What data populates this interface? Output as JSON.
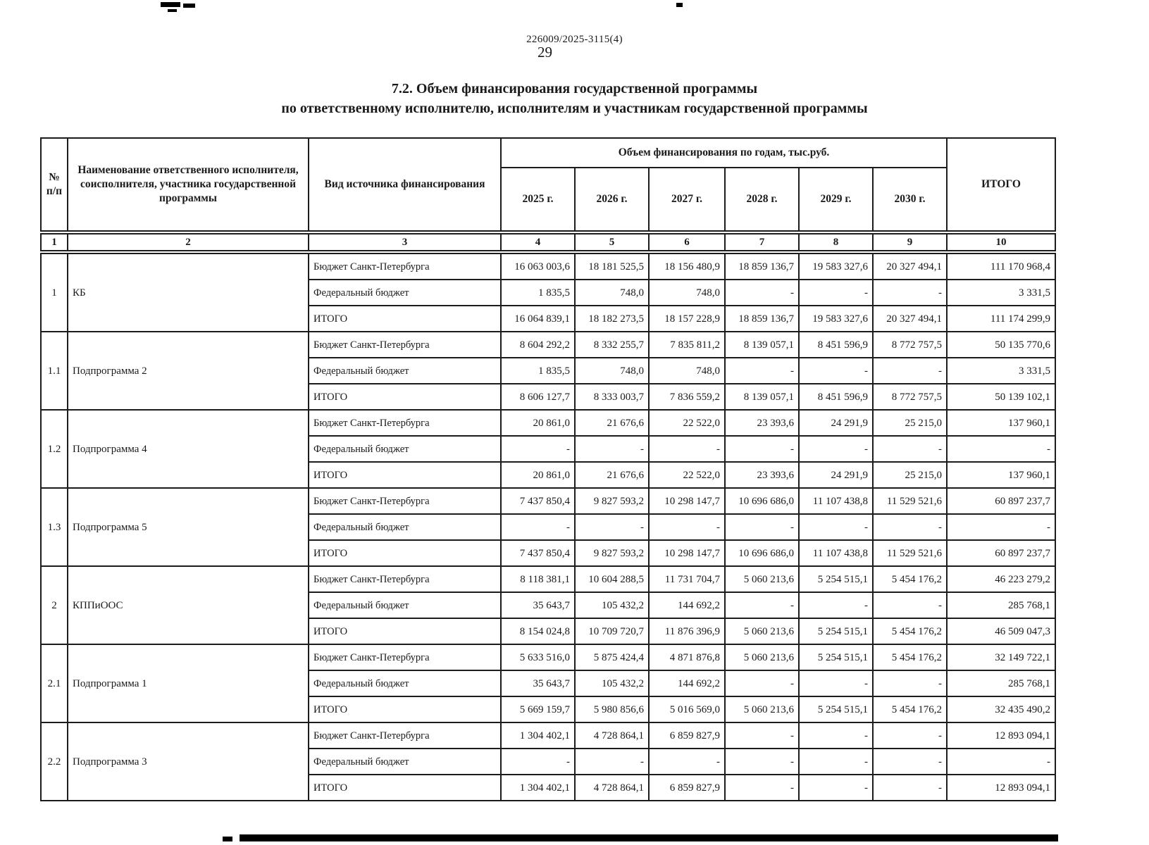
{
  "page": {
    "doc_number": "226009/2025-3115(4)",
    "page_number": "29",
    "title_line1": "7.2. Объем финансирования государственной программы",
    "title_line2": "по ответственному исполнителю, исполнителям и участникам государственной программы"
  },
  "table": {
    "headers": {
      "num": "№ п/п",
      "name": "Наименование ответственного исполнителя, соисполнителя, участника государственной программы",
      "source": "Вид источника финансирования",
      "volume_group": "Объем финансирования по годам, тыс.руб.",
      "years": [
        "2025 г.",
        "2026 г.",
        "2027 г.",
        "2028 г.",
        "2029 г.",
        "2030 г."
      ],
      "total": "ИТОГО",
      "col_numbers": [
        "1",
        "2",
        "3",
        "4",
        "5",
        "6",
        "7",
        "8",
        "9",
        "10"
      ]
    },
    "groups": [
      {
        "num": "1",
        "name": "КБ",
        "rows": [
          {
            "source": "Бюджет Санкт-Петербурга",
            "values": [
              "16 063 003,6",
              "18 181 525,5",
              "18 156 480,9",
              "18 859 136,7",
              "19 583 327,6",
              "20 327 494,1",
              "111 170 968,4"
            ]
          },
          {
            "source": "Федеральный бюджет",
            "values": [
              "1 835,5",
              "748,0",
              "748,0",
              "-",
              "-",
              "-",
              "3 331,5"
            ]
          },
          {
            "source": "ИТОГО",
            "values": [
              "16 064 839,1",
              "18 182 273,5",
              "18 157 228,9",
              "18 859 136,7",
              "19 583 327,6",
              "20 327 494,1",
              "111 174 299,9"
            ]
          }
        ]
      },
      {
        "num": "1.1",
        "name": "Подпрограмма 2",
        "rows": [
          {
            "source": "Бюджет Санкт-Петербурга",
            "values": [
              "8 604 292,2",
              "8 332 255,7",
              "7 835 811,2",
              "8 139 057,1",
              "8 451 596,9",
              "8 772 757,5",
              "50 135 770,6"
            ]
          },
          {
            "source": "Федеральный бюджет",
            "values": [
              "1 835,5",
              "748,0",
              "748,0",
              "-",
              "-",
              "-",
              "3 331,5"
            ]
          },
          {
            "source": "ИТОГО",
            "values": [
              "8 606 127,7",
              "8 333 003,7",
              "7 836 559,2",
              "8 139 057,1",
              "8 451 596,9",
              "8 772 757,5",
              "50 139 102,1"
            ]
          }
        ]
      },
      {
        "num": "1.2",
        "name": "Подпрограмма 4",
        "rows": [
          {
            "source": "Бюджет Санкт-Петербурга",
            "values": [
              "20 861,0",
              "21 676,6",
              "22 522,0",
              "23 393,6",
              "24 291,9",
              "25 215,0",
              "137 960,1"
            ]
          },
          {
            "source": "Федеральный бюджет",
            "values": [
              "-",
              "-",
              "-",
              "-",
              "-",
              "-",
              "-"
            ]
          },
          {
            "source": "ИТОГО",
            "values": [
              "20 861,0",
              "21 676,6",
              "22 522,0",
              "23 393,6",
              "24 291,9",
              "25 215,0",
              "137 960,1"
            ]
          }
        ]
      },
      {
        "num": "1.3",
        "name": "Подпрограмма 5",
        "rows": [
          {
            "source": "Бюджет Санкт-Петербурга",
            "values": [
              "7 437 850,4",
              "9 827 593,2",
              "10 298 147,7",
              "10 696 686,0",
              "11 107 438,8",
              "11 529 521,6",
              "60 897 237,7"
            ]
          },
          {
            "source": "Федеральный бюджет",
            "values": [
              "-",
              "-",
              "-",
              "-",
              "-",
              "-",
              "-"
            ]
          },
          {
            "source": "ИТОГО",
            "values": [
              "7 437 850,4",
              "9 827 593,2",
              "10 298 147,7",
              "10 696 686,0",
              "11 107 438,8",
              "11 529 521,6",
              "60 897 237,7"
            ]
          }
        ]
      },
      {
        "num": "2",
        "name": "КППиООС",
        "rows": [
          {
            "source": "Бюджет Санкт-Петербурга",
            "values": [
              "8 118 381,1",
              "10 604 288,5",
              "11 731 704,7",
              "5 060 213,6",
              "5 254 515,1",
              "5 454 176,2",
              "46 223 279,2"
            ]
          },
          {
            "source": "Федеральный бюджет",
            "values": [
              "35 643,7",
              "105 432,2",
              "144 692,2",
              "-",
              "-",
              "-",
              "285 768,1"
            ]
          },
          {
            "source": "ИТОГО",
            "values": [
              "8 154 024,8",
              "10 709 720,7",
              "11 876 396,9",
              "5 060 213,6",
              "5 254 515,1",
              "5 454 176,2",
              "46 509 047,3"
            ]
          }
        ]
      },
      {
        "num": "2.1",
        "name": "Подпрограмма 1",
        "rows": [
          {
            "source": "Бюджет Санкт-Петербурга",
            "values": [
              "5 633 516,0",
              "5 875 424,4",
              "4 871 876,8",
              "5 060 213,6",
              "5 254 515,1",
              "5 454 176,2",
              "32 149 722,1"
            ]
          },
          {
            "source": "Федеральный бюджет",
            "values": [
              "35 643,7",
              "105 432,2",
              "144 692,2",
              "-",
              "-",
              "-",
              "285 768,1"
            ]
          },
          {
            "source": "ИТОГО",
            "values": [
              "5 669 159,7",
              "5 980 856,6",
              "5 016 569,0",
              "5 060 213,6",
              "5 254 515,1",
              "5 454 176,2",
              "32 435 490,2"
            ]
          }
        ]
      },
      {
        "num": "2.2",
        "name": "Подпрограмма 3",
        "rows": [
          {
            "source": "Бюджет Санкт-Петербурга",
            "values": [
              "1 304 402,1",
              "4 728 864,1",
              "6 859 827,9",
              "-",
              "-",
              "-",
              "12 893 094,1"
            ]
          },
          {
            "source": "Федеральный бюджет",
            "values": [
              "-",
              "-",
              "-",
              "-",
              "-",
              "-",
              "-"
            ]
          },
          {
            "source": "ИТОГО",
            "values": [
              "1 304 402,1",
              "4 728 864,1",
              "6 859 827,9",
              "-",
              "-",
              "-",
              "12 893 094,1"
            ]
          }
        ]
      }
    ]
  }
}
